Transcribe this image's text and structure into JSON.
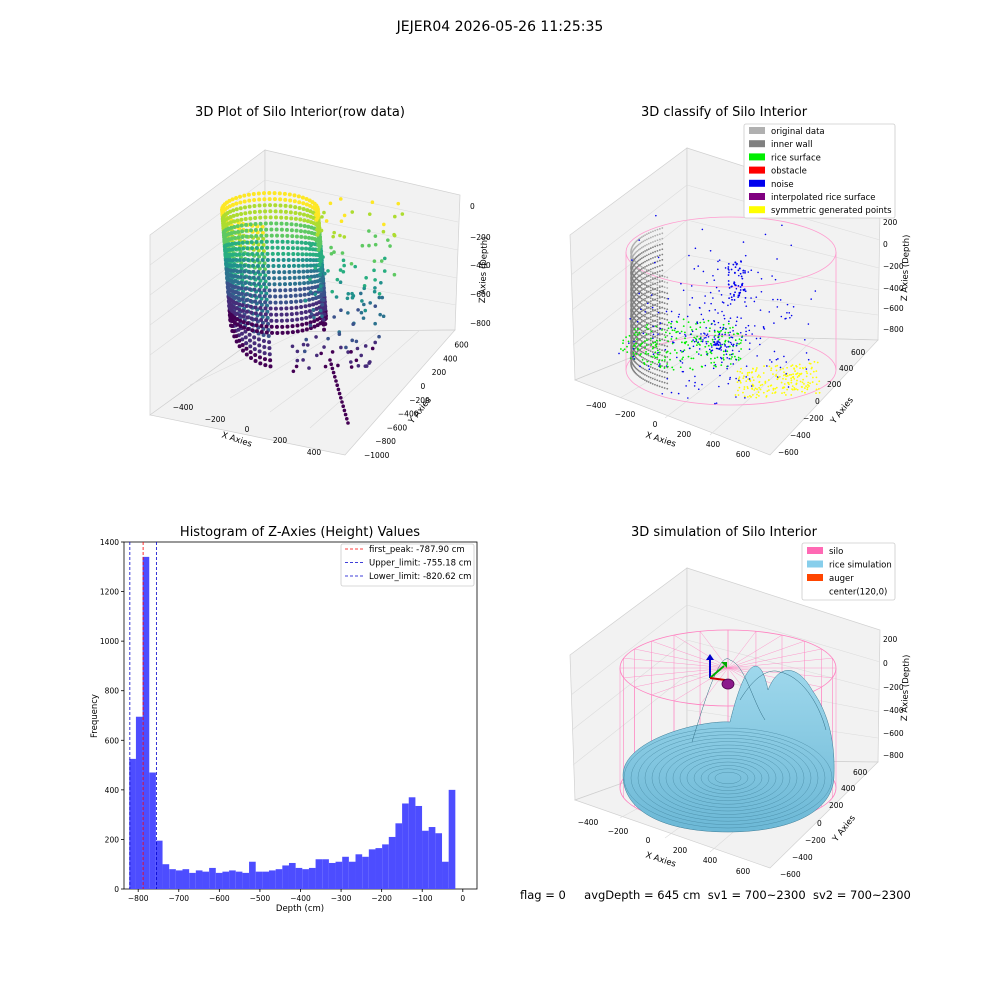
{
  "figure_title": "JEJER04 2026-05-26 11:25:35",
  "panels": {
    "raw": {
      "title": "3D Plot of Silo Interior(row data)",
      "xlabel": "X Axies",
      "ylabel": "Y Axies",
      "zlabel": "Z Axies (Depth)",
      "x_ticks": [
        "−400",
        "−200",
        "0",
        "200",
        "400"
      ],
      "y_ticks": [
        "−1000",
        "−800",
        "−600",
        "−400",
        "−200",
        "0",
        "200",
        "400",
        "600"
      ],
      "z_ticks": [
        "0",
        "−200",
        "−400",
        "−600",
        "−800"
      ],
      "colormap": "viridis"
    },
    "classify": {
      "title": "3D classify of Silo Interior",
      "xlabel": "X Axies",
      "ylabel": "Y Axies",
      "zlabel": "Z Axies (Depth)",
      "x_ticks": [
        "−400",
        "−200",
        "0",
        "200",
        "400",
        "600"
      ],
      "y_ticks": [
        "−600",
        "−400",
        "−200",
        "0",
        "200",
        "400",
        "600"
      ],
      "z_ticks": [
        "200",
        "0",
        "−200",
        "−400",
        "−600",
        "−800"
      ],
      "legend": [
        {
          "label": "original data",
          "color": "#b0b0b0"
        },
        {
          "label": "inner wall",
          "color": "#808080"
        },
        {
          "label": "rice surface",
          "color": "#00ee00"
        },
        {
          "label": "obstacle",
          "color": "#ff0000"
        },
        {
          "label": "noise",
          "color": "#0000ee"
        },
        {
          "label": "interpolated rice surface",
          "color": "#800080"
        },
        {
          "label": "symmetric generated points",
          "color": "#ffff00"
        }
      ]
    },
    "simulation": {
      "title": "3D simulation of Silo Interior",
      "xlabel": "X Axies",
      "ylabel": "Y Axies",
      "zlabel": "Z Axies (Depth)",
      "x_ticks": [
        "−400",
        "−200",
        "0",
        "200",
        "400",
        "600"
      ],
      "y_ticks": [
        "−600",
        "−400",
        "−200",
        "0",
        "200",
        "400",
        "600"
      ],
      "z_ticks": [
        "200",
        "0",
        "−200",
        "−400",
        "−600",
        "−800"
      ],
      "legend": [
        {
          "label": "silo",
          "color": "#ff69b4"
        },
        {
          "label": "rice simulation",
          "color": "#87ceeb"
        },
        {
          "label": "auger",
          "color": "#ff4500"
        },
        {
          "label": "center(120,0)",
          "color": "#ffffff"
        }
      ]
    }
  },
  "status": {
    "flag": "flag = 0",
    "avg_depth": "avgDepth = 645 cm",
    "sv1": "sv1 = 700~2300",
    "sv2": "sv2 = 700~2300"
  },
  "chart_data": {
    "type": "bar",
    "title": "Histogram of Z-Axies (Height) Values",
    "xlabel": "Depth (cm)",
    "ylabel": "Frequency",
    "xlim": [
      -835,
      35
    ],
    "ylim": [
      0,
      1400
    ],
    "x_ticks": [
      -800,
      -700,
      -600,
      -500,
      -400,
      -300,
      -200,
      -100,
      0
    ],
    "y_ticks": [
      0,
      200,
      400,
      600,
      800,
      1000,
      1200,
      1400
    ],
    "bar_color": "#4d4dff",
    "bin_width": 16.4,
    "bin_start": -822,
    "values": [
      525,
      695,
      1340,
      470,
      195,
      100,
      80,
      75,
      80,
      65,
      75,
      70,
      85,
      65,
      70,
      75,
      70,
      65,
      110,
      70,
      70,
      75,
      80,
      95,
      105,
      85,
      80,
      85,
      120,
      120,
      105,
      110,
      130,
      110,
      140,
      130,
      160,
      165,
      180,
      210,
      265,
      345,
      370,
      335,
      235,
      250,
      225,
      110,
      400
    ],
    "reference_lines": [
      {
        "name": "first_peak",
        "label": "first_peak: -787.90 cm",
        "value": -787.9,
        "color": "#ff0000"
      },
      {
        "name": "upper_limit",
        "label": "Upper_limit: -755.18 cm",
        "value": -755.18,
        "color": "#0000cc"
      },
      {
        "name": "lower_limit",
        "label": "Lower_limit: -820.62 cm",
        "value": -820.62,
        "color": "#0000cc"
      }
    ],
    "legend_position": "upper right"
  }
}
